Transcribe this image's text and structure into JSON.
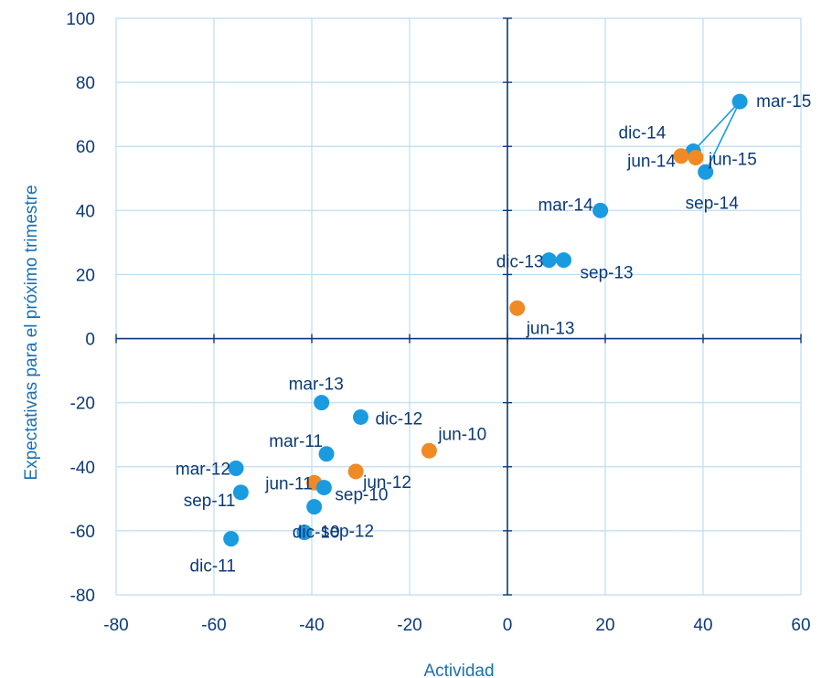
{
  "chart_data": {
    "type": "scatter",
    "xlabel": "Actividad",
    "ylabel": "Expectativas para el próximo trimestre",
    "xlim": [
      -80,
      60
    ],
    "ylim": [
      -80,
      100
    ],
    "x_ticks": [
      "-80",
      "-60",
      "-40",
      "-20",
      "0",
      "20",
      "40",
      "60"
    ],
    "y_ticks": [
      "100",
      "80",
      "60",
      "40",
      "20",
      "0",
      "-20",
      "-40",
      "-60",
      "-80"
    ],
    "grid": true,
    "colors": {
      "blue": "#1a9be0",
      "orange": "#f08a24",
      "grid": "#bcdcf2",
      "zero_axis": "#0b3a78",
      "text": "#0b3a78",
      "axis_title": "#1a6fb3"
    },
    "points": [
      {
        "label": "mar-15",
        "x": 47.5,
        "y": 74,
        "color": "blue"
      },
      {
        "label": "dic-14",
        "x": 38,
        "y": 58.5,
        "color": "blue"
      },
      {
        "label": "jun-14",
        "x": 35.5,
        "y": 57,
        "color": "orange"
      },
      {
        "label": "jun-15",
        "x": 38.5,
        "y": 56.5,
        "color": "orange"
      },
      {
        "label": "sep-14",
        "x": 40.5,
        "y": 52,
        "color": "blue"
      },
      {
        "label": "mar-14",
        "x": 19,
        "y": 40,
        "color": "blue"
      },
      {
        "label": "dic-13",
        "x": 8.5,
        "y": 24.5,
        "color": "blue"
      },
      {
        "label": "sep-13",
        "x": 11.5,
        "y": 24.5,
        "color": "blue"
      },
      {
        "label": "jun-13",
        "x": 2,
        "y": 9.5,
        "color": "orange"
      },
      {
        "label": "mar-13",
        "x": -38,
        "y": -20,
        "color": "blue"
      },
      {
        "label": "dic-12",
        "x": -30,
        "y": -24.5,
        "color": "blue"
      },
      {
        "label": "jun-10",
        "x": -16,
        "y": -35,
        "color": "orange"
      },
      {
        "label": "mar-11",
        "x": -37,
        "y": -36,
        "color": "blue"
      },
      {
        "label": "mar-12",
        "x": -55.5,
        "y": -40.5,
        "color": "blue"
      },
      {
        "label": "jun-12",
        "x": -31,
        "y": -41.5,
        "color": "orange"
      },
      {
        "label": "jun-11",
        "x": -39.5,
        "y": -45,
        "color": "orange"
      },
      {
        "label": "sep-11",
        "x": -54.5,
        "y": -48,
        "color": "blue"
      },
      {
        "label": "sep-10",
        "x": -37.5,
        "y": -46.5,
        "color": "blue"
      },
      {
        "label": "dic-10",
        "x": -39.5,
        "y": -52.5,
        "color": "blue"
      },
      {
        "label": "sep-12",
        "x": -41.5,
        "y": -60.5,
        "color": "blue"
      },
      {
        "label": "dic-11",
        "x": -56.5,
        "y": -62.5,
        "color": "blue"
      }
    ],
    "connector_path": [
      "sep-14",
      "mar-15",
      "dic-14"
    ]
  }
}
